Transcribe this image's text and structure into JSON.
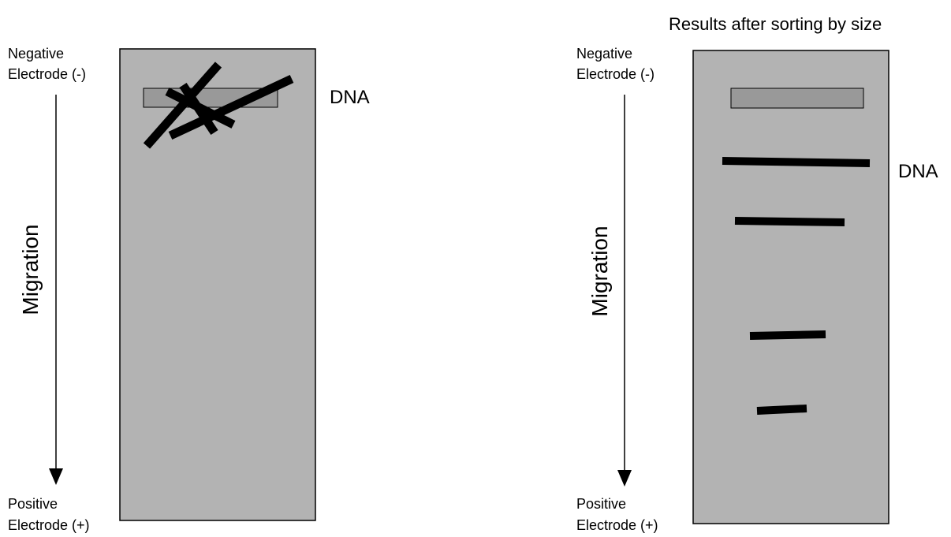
{
  "title": "Results after sorting by size",
  "colors": {
    "gel": "#b3b3b3",
    "well": "#999999",
    "band": "#000000",
    "background": "#ffffff"
  },
  "before": {
    "negative_line1": "Negative",
    "negative_line2": "Electrode (-)",
    "positive_line1": "Positive",
    "positive_line2": "Electrode (+)",
    "migration_label": "Migration",
    "dna_label": "DNA"
  },
  "after": {
    "negative_line1": "Negative",
    "negative_line2": "Electrode (-)",
    "positive_line1": "Positive",
    "positive_line2": "Electrode (+)",
    "migration_label": "Migration",
    "dna_label": "DNA",
    "band_count": 4
  }
}
